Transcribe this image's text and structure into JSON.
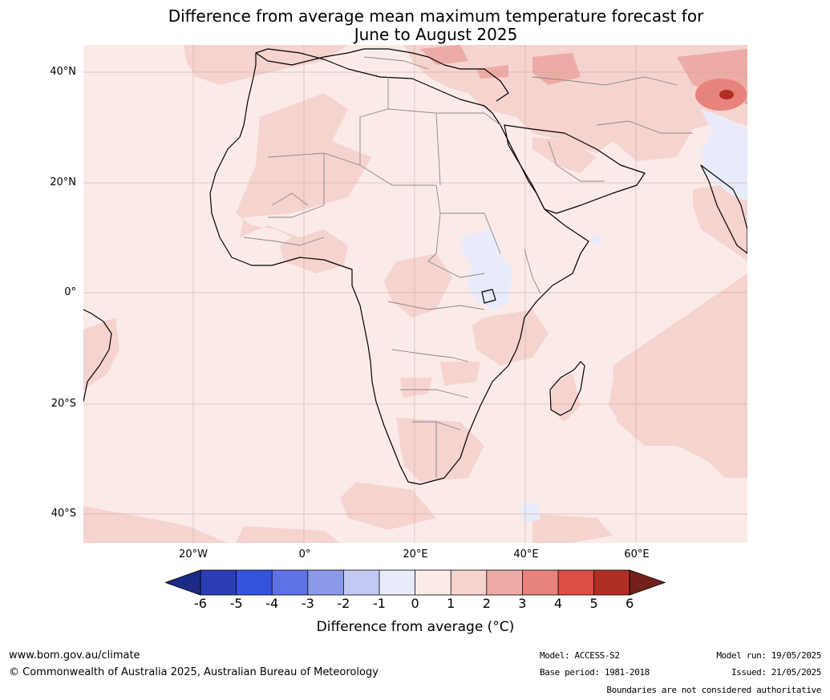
{
  "title_line1": "Difference from average mean maximum temperature forecast for",
  "title_line2": "June to August 2025",
  "lat_labels": [
    "40°N",
    "20°N",
    "0°",
    "20°S",
    "40°S"
  ],
  "lon_labels": [
    "20°W",
    "0°",
    "20°E",
    "40°E",
    "60°E"
  ],
  "colorbar": {
    "ticks": [
      "-6",
      "-5",
      "-4",
      "-3",
      "-2",
      "-1",
      "0",
      "1",
      "2",
      "3",
      "4",
      "5",
      "6"
    ],
    "label": "Difference from average (°C)",
    "colors": [
      "#1b2a82",
      "#2a3db5",
      "#3552df",
      "#5e73e3",
      "#8a9ae9",
      "#c2c9f2",
      "#e8ebfa",
      "#fbebe8",
      "#f5d3cf",
      "#ecaba5",
      "#e6837b",
      "#dc4d43",
      "#b12e24",
      "#73201a"
    ]
  },
  "map": {
    "background_color": "#fbebe8",
    "warm_color": "#f5d3cf",
    "warmer_color": "#ecaba5",
    "hot_color": "#e6837b",
    "cool_color": "#e8ebfa"
  },
  "footer": {
    "website": "www.bom.gov.au/climate",
    "copyright": "© Commonwealth of Australia 2025, Australian Bureau of Meteorology",
    "model": "Model: ACCESS-S2",
    "base_period": "Base period: 1981-2018",
    "model_run": "Model run: 19/05/2025",
    "issued": "Issued: 21/05/2025",
    "disclaimer": "Boundaries are not considered authoritative"
  }
}
